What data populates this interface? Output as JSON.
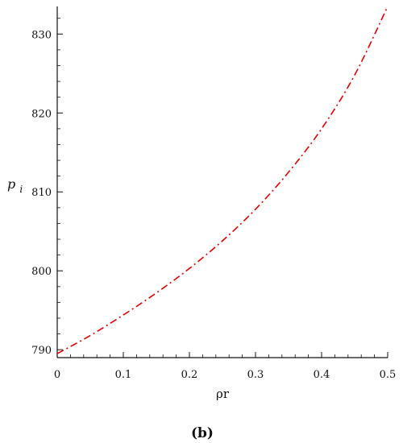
{
  "chart_data": {
    "type": "line",
    "panel_label": "(b)",
    "xlabel": "ρr",
    "ylabel": {
      "base": "p",
      "sub": "i"
    },
    "xlim": [
      0,
      0.5
    ],
    "ylim": [
      789,
      833.5
    ],
    "x_ticks": [
      "0",
      "0.1",
      "0.2",
      "0.3",
      "0.4",
      "0.5"
    ],
    "x_tick_values": [
      0,
      0.1,
      0.2,
      0.3,
      0.4,
      0.5
    ],
    "y_ticks": [
      "790",
      "800",
      "810",
      "820",
      "830"
    ],
    "y_tick_values": [
      790,
      800,
      810,
      820,
      830
    ],
    "grid": false,
    "series": [
      {
        "color": "#e60000",
        "line_style": "dash-dot",
        "x": [
          0,
          0.05,
          0.1,
          0.15,
          0.2,
          0.25,
          0.3,
          0.35,
          0.4,
          0.45,
          0.5
        ],
        "y": [
          789.5,
          791.8,
          794.4,
          797.2,
          800.3,
          803.8,
          807.8,
          812.5,
          818.0,
          824.8,
          833.5
        ]
      }
    ]
  }
}
